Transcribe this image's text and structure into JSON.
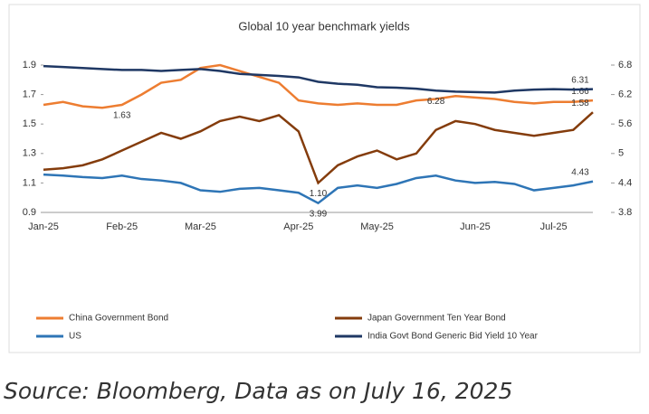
{
  "chart_data": {
    "type": "line",
    "title": "Global 10 year benchmark yields",
    "categories": [
      "Jan-25",
      null,
      null,
      null,
      "Feb-25",
      null,
      null,
      null,
      "Mar-25",
      null,
      null,
      null,
      null,
      "Apr-25",
      null,
      null,
      null,
      "May-25",
      null,
      null,
      null,
      null,
      "Jun-25",
      null,
      null,
      null,
      "Jul-25",
      null,
      null
    ],
    "ylim": [
      0.9,
      1.9
    ],
    "yticks": [
      0.9,
      1.1,
      1.3,
      1.5,
      1.7,
      1.9
    ],
    "y2lim": [
      3.8,
      6.8
    ],
    "y2ticks": [
      3.8,
      4.4,
      5.0,
      5.6,
      6.2,
      6.8
    ],
    "legend": "bottom",
    "series": [
      {
        "name": "China Government Bond",
        "color": "#ed7d31",
        "values": [
          1.63,
          1.65,
          1.62,
          1.61,
          1.63,
          1.7,
          1.78,
          1.8,
          1.88,
          1.9,
          1.86,
          1.82,
          1.78,
          1.66,
          1.64,
          1.63,
          1.64,
          1.63,
          1.63,
          1.66,
          1.67,
          1.69,
          1.68,
          1.67,
          1.65,
          1.64,
          1.65,
          1.65,
          1.66
        ],
        "value_labels": [
          null,
          null,
          null,
          null,
          "1.63",
          null,
          null,
          null,
          null,
          null,
          null,
          null,
          null,
          null,
          null,
          null,
          null,
          null,
          null,
          null,
          null,
          null,
          null,
          null,
          null,
          null,
          null,
          null,
          "1.66"
        ]
      },
      {
        "name": "Japan Government Ten Year Bond",
        "color": "#843c0c",
        "values": [
          1.19,
          1.2,
          1.22,
          1.26,
          1.32,
          1.38,
          1.44,
          1.4,
          1.45,
          1.52,
          1.55,
          1.52,
          1.56,
          1.45,
          1.1,
          1.22,
          1.28,
          1.32,
          1.26,
          1.3,
          1.46,
          1.52,
          1.5,
          1.46,
          1.44,
          1.42,
          1.44,
          1.46,
          1.58
        ],
        "value_labels": [
          null,
          null,
          null,
          null,
          null,
          null,
          null,
          null,
          null,
          null,
          null,
          null,
          null,
          null,
          "1.10",
          null,
          null,
          null,
          null,
          null,
          null,
          null,
          null,
          null,
          null,
          null,
          null,
          null,
          "1.58"
        ]
      },
      {
        "name": "US",
        "color": "#2e75b6",
        "axis": "y2",
        "values": [
          4.57,
          4.55,
          4.52,
          4.5,
          4.55,
          4.48,
          4.45,
          4.4,
          4.25,
          4.22,
          4.28,
          4.3,
          4.25,
          4.2,
          3.99,
          4.3,
          4.35,
          4.3,
          4.38,
          4.5,
          4.55,
          4.45,
          4.4,
          4.42,
          4.38,
          4.25,
          4.3,
          4.35,
          4.43
        ],
        "value_labels": [
          null,
          null,
          null,
          null,
          null,
          null,
          null,
          null,
          null,
          null,
          null,
          null,
          null,
          null,
          "3.99",
          null,
          null,
          null,
          null,
          null,
          null,
          null,
          null,
          null,
          null,
          null,
          null,
          null,
          "4.43"
        ]
      },
      {
        "name": "India Govt Bond Generic Bid Yield 10 Year",
        "color": "#1f3864",
        "axis": "y2",
        "values": [
          6.78,
          6.76,
          6.74,
          6.72,
          6.7,
          6.7,
          6.68,
          6.7,
          6.72,
          6.68,
          6.62,
          6.6,
          6.58,
          6.55,
          6.46,
          6.42,
          6.4,
          6.35,
          6.34,
          6.32,
          6.28,
          6.26,
          6.25,
          6.24,
          6.28,
          6.3,
          6.31,
          6.3,
          6.31
        ],
        "value_labels": [
          null,
          null,
          null,
          null,
          null,
          null,
          null,
          null,
          null,
          null,
          null,
          null,
          null,
          null,
          null,
          null,
          null,
          null,
          null,
          null,
          "6.28",
          null,
          null,
          null,
          null,
          null,
          null,
          null,
          "6.31"
        ]
      }
    ]
  },
  "source": "Source: Bloomberg, Data as on July 16, 2025"
}
